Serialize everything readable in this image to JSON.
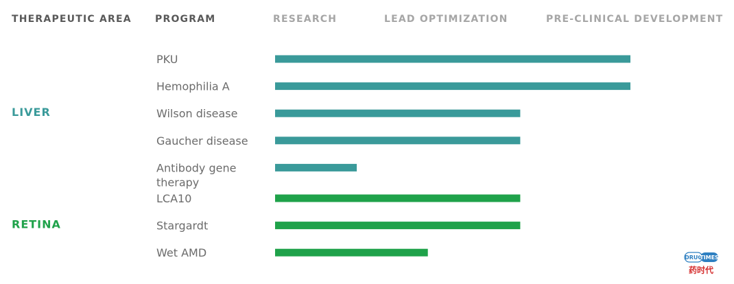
{
  "headers": {
    "therapeutic_area": "THERAPEUTIC AREA",
    "program": "PROGRAM",
    "stages": [
      "RESEARCH",
      "LEAD OPTIMIZATION",
      "PRE-CLINICAL DEVELOPMENT"
    ]
  },
  "colors": {
    "liver": "#3a9a9a",
    "retina": "#1fa24a",
    "header_dark": "#595959",
    "header_light": "#a6a6a6",
    "program_text": "#6b6b6b"
  },
  "chart_data": {
    "type": "bar",
    "orientation": "horizontal",
    "title": "",
    "stages": [
      "RESEARCH",
      "LEAD OPTIMIZATION",
      "PRE-CLINICAL DEVELOPMENT"
    ],
    "groups": [
      {
        "name": "LIVER",
        "color": "#3a9a9a",
        "programs": [
          {
            "label_lines": [
              "PKU"
            ],
            "progress": 1.0
          },
          {
            "label_lines": [
              "Hemophilia A"
            ],
            "progress": 1.0
          },
          {
            "label_lines": [
              "Wilson disease"
            ],
            "progress": 0.69
          },
          {
            "label_lines": [
              "Gaucher disease"
            ],
            "progress": 0.69
          },
          {
            "label_lines": [
              "Antibody gene",
              "therapy"
            ],
            "progress": 0.23
          }
        ]
      },
      {
        "name": "RETINA",
        "color": "#1fa24a",
        "programs": [
          {
            "label_lines": [
              "LCA10"
            ],
            "progress": 0.69
          },
          {
            "label_lines": [
              "Stargardt"
            ],
            "progress": 0.69
          },
          {
            "label_lines": [
              "Wet AMD"
            ],
            "progress": 0.43
          }
        ]
      }
    ]
  },
  "logo": {
    "badge_left": "DRUG",
    "badge_right": "TIMES",
    "chinese": "药时代"
  }
}
